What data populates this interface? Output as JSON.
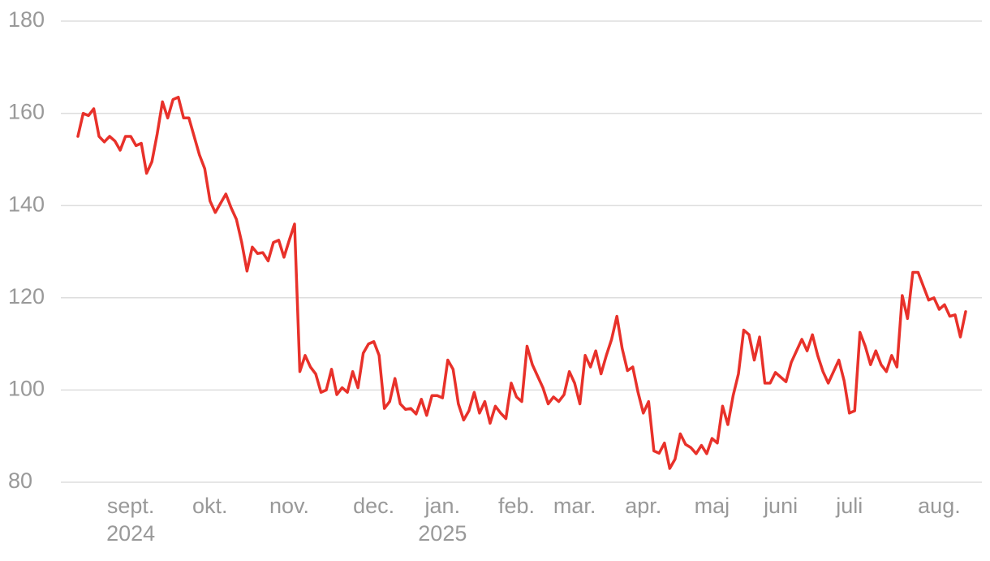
{
  "chart_data": {
    "type": "line",
    "color": "#e8312a",
    "grid": true,
    "ylim": [
      80,
      180
    ],
    "yticks": [
      80,
      100,
      120,
      140,
      160,
      180
    ],
    "categories": [
      null,
      null,
      null,
      null,
      null,
      null,
      null,
      null,
      null,
      null,
      "sept.",
      null,
      null,
      null,
      null,
      null,
      null,
      null,
      null,
      null,
      null,
      null,
      null,
      null,
      null,
      "okt.",
      null,
      null,
      null,
      null,
      null,
      null,
      null,
      null,
      null,
      null,
      null,
      null,
      null,
      null,
      "nov.",
      null,
      null,
      null,
      null,
      null,
      null,
      null,
      null,
      null,
      null,
      null,
      null,
      null,
      null,
      null,
      "dec.",
      null,
      null,
      null,
      null,
      null,
      null,
      null,
      null,
      null,
      null,
      null,
      null,
      "jan.",
      null,
      null,
      null,
      null,
      null,
      null,
      null,
      null,
      null,
      null,
      null,
      null,
      null,
      "feb.",
      null,
      null,
      null,
      null,
      null,
      null,
      null,
      null,
      null,
      null,
      "mar.",
      null,
      null,
      null,
      null,
      null,
      null,
      null,
      null,
      null,
      null,
      null,
      null,
      "apr.",
      null,
      null,
      null,
      null,
      null,
      null,
      null,
      null,
      null,
      null,
      null,
      null,
      "maj",
      null,
      null,
      null,
      null,
      null,
      null,
      null,
      null,
      null,
      null,
      null,
      null,
      "juni",
      null,
      null,
      null,
      null,
      null,
      null,
      null,
      null,
      null,
      null,
      null,
      null,
      "juli",
      null,
      null,
      null,
      null,
      null,
      null,
      null,
      null,
      null,
      null,
      null,
      null,
      null,
      null,
      null,
      null,
      "aug.",
      null,
      null,
      null,
      null,
      null
    ],
    "x_sublabels": [
      null,
      null,
      null,
      null,
      null,
      null,
      null,
      null,
      null,
      null,
      "2024",
      null,
      null,
      null,
      null,
      null,
      null,
      null,
      null,
      null,
      null,
      null,
      null,
      null,
      null,
      null,
      null,
      null,
      null,
      null,
      null,
      null,
      null,
      null,
      null,
      null,
      null,
      null,
      null,
      null,
      null,
      null,
      null,
      null,
      null,
      null,
      null,
      null,
      null,
      null,
      null,
      null,
      null,
      null,
      null,
      null,
      null,
      null,
      null,
      null,
      null,
      null,
      null,
      null,
      null,
      null,
      null,
      null,
      null,
      "2025",
      null,
      null,
      null,
      null,
      null,
      null,
      null,
      null,
      null,
      null,
      null,
      null,
      null,
      null,
      null,
      null,
      null,
      null,
      null,
      null,
      null,
      null,
      null,
      null,
      null,
      null,
      null,
      null,
      null,
      null,
      null,
      null,
      null,
      null,
      null,
      null,
      null,
      null,
      null,
      null,
      null,
      null,
      null,
      null,
      null,
      null,
      null,
      null,
      null,
      null,
      null,
      null,
      null,
      null,
      null,
      null,
      null,
      null,
      null,
      null,
      null,
      null,
      null,
      null,
      null,
      null,
      null,
      null,
      null,
      null,
      null,
      null,
      null,
      null,
      null,
      null,
      null,
      null,
      null,
      null,
      null,
      null,
      null,
      null,
      null,
      null,
      null,
      null,
      null,
      null,
      null,
      null,
      null,
      null,
      null,
      null,
      null,
      null,
      null
    ],
    "values": [
      155,
      160,
      159.5,
      161,
      155,
      153.8,
      155,
      154,
      152,
      155,
      155,
      153,
      153.5,
      147,
      149.5,
      155.5,
      162.5,
      159,
      163,
      163.5,
      159,
      159,
      155,
      151,
      148,
      141,
      138.5,
      140.5,
      142.5,
      139.5,
      137,
      132,
      125.8,
      131,
      129.6,
      129.8,
      128,
      132,
      132.5,
      128.8,
      132.5,
      136,
      104,
      107.5,
      105,
      103.5,
      99.5,
      100,
      104.5,
      99,
      100.5,
      99.5,
      104,
      100.5,
      108,
      110,
      110.5,
      107.5,
      96,
      97.5,
      102.5,
      97,
      95.8,
      96,
      94.8,
      98,
      94.5,
      98.8,
      98.8,
      98.3,
      106.5,
      104.5,
      97,
      93.5,
      95.5,
      99.5,
      95,
      97.5,
      92.8,
      96.5,
      95,
      93.8,
      101.5,
      98.5,
      97.5,
      109.5,
      105.5,
      103,
      100.5,
      97,
      98.5,
      97.5,
      99,
      104,
      101.5,
      97,
      107.5,
      105,
      108.5,
      103.5,
      107.5,
      111,
      116,
      109,
      104.2,
      105,
      99.5,
      95,
      97.5,
      86.8,
      86.3,
      88.5,
      83,
      85,
      90.5,
      88.2,
      87.5,
      86.2,
      88,
      86.2,
      89.5,
      88.5,
      96.5,
      92.5,
      98.8,
      103.5,
      113,
      112,
      106.5,
      111.5,
      101.5,
      101.5,
      103.8,
      102.8,
      101.8,
      106,
      108.5,
      111,
      108.5,
      112,
      107.5,
      104,
      101.5,
      104,
      106.5,
      102,
      95,
      95.5,
      112.5,
      109.5,
      105.5,
      108.5,
      105.5,
      104,
      107.5,
      105,
      120.5,
      115.5,
      125.5,
      125.5,
      122.5,
      119.5,
      120,
      117.5,
      118.5,
      116,
      116.3,
      111.5,
      117
    ]
  }
}
